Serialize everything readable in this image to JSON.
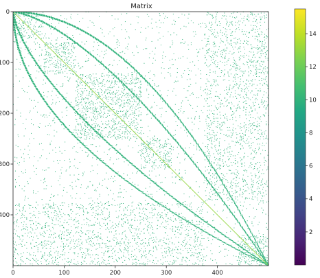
{
  "chart_data": {
    "type": "heatmap",
    "title": "Matrix",
    "xlabel": "",
    "ylabel": "",
    "matrix_size": 500,
    "x_range": [
      0,
      500
    ],
    "y_range": [
      0,
      500
    ],
    "y_inverted": true,
    "x_ticks": [
      0,
      100,
      200,
      300,
      400
    ],
    "x_tick_labels": [
      "0",
      "100",
      "200",
      "300",
      "400"
    ],
    "y_ticks": [
      0,
      100,
      200,
      300,
      400
    ],
    "y_tick_labels": [
      "0",
      "100",
      "200",
      "300",
      "400"
    ],
    "colorbar": {
      "colormap": "viridis",
      "range": [
        0,
        15.5
      ],
      "ticks": [
        2,
        4,
        6,
        8,
        10,
        12,
        14
      ],
      "tick_labels": [
        "2",
        "4",
        "6",
        "8",
        "10",
        "12",
        "14"
      ]
    },
    "cell_value": 10,
    "diagonal_value": 13,
    "dense_blocks": [
      {
        "rows": [
          0,
          60
        ],
        "cols": [
          0,
          60
        ],
        "density": 0.35
      },
      {
        "rows": [
          60,
          122
        ],
        "cols": [
          60,
          122
        ],
        "density": 0.45
      },
      {
        "rows": [
          122,
          250
        ],
        "cols": [
          122,
          250
        ],
        "density": 0.4
      },
      {
        "rows": [
          250,
          310
        ],
        "cols": [
          250,
          310
        ],
        "density": 0.45
      },
      {
        "rows": [
          0,
          375
        ],
        "cols": [
          375,
          500
        ],
        "density": 0.22
      },
      {
        "rows": [
          375,
          500
        ],
        "cols": [
          0,
          375
        ],
        "density": 0.22
      },
      {
        "rows": [
          440,
          500
        ],
        "cols": [
          440,
          500
        ],
        "density": 0.45
      }
    ],
    "band_curves": [
      {
        "type": "power",
        "exponent": 2,
        "orientation": "upper"
      },
      {
        "type": "power",
        "exponent": 1.5,
        "orientation": "upper"
      },
      {
        "type": "power",
        "exponent": 2,
        "orientation": "lower"
      },
      {
        "type": "power",
        "exponent": 1.5,
        "orientation": "lower"
      }
    ],
    "background_density": 0.004,
    "grid": false
  }
}
